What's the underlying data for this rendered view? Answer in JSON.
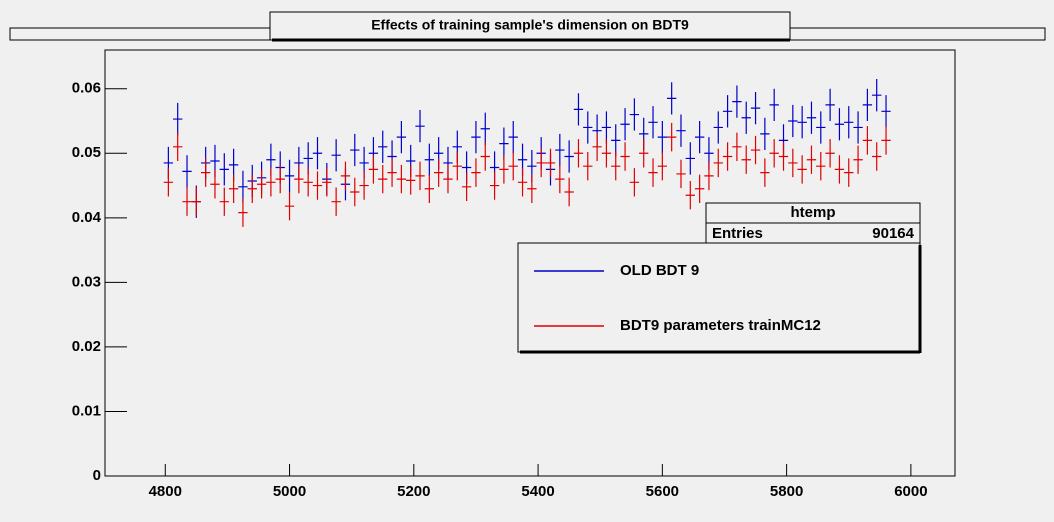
{
  "chart_data": {
    "type": "errorbar",
    "title": "Effects of training sample's dimension on BDT9",
    "x": [
      4805,
      4820,
      4835,
      4850,
      4865,
      4880,
      4895,
      4910,
      4925,
      4940,
      4955,
      4970,
      4985,
      5000,
      5015,
      5030,
      5045,
      5060,
      5075,
      5090,
      5105,
      5120,
      5135,
      5150,
      5165,
      5180,
      5195,
      5210,
      5225,
      5240,
      5255,
      5270,
      5285,
      5300,
      5315,
      5330,
      5345,
      5360,
      5375,
      5390,
      5405,
      5420,
      5435,
      5450,
      5465,
      5480,
      5495,
      5510,
      5525,
      5540,
      5555,
      5570,
      5585,
      5600,
      5615,
      5630,
      5645,
      5660,
      5675,
      5690,
      5705,
      5720,
      5735,
      5750,
      5765,
      5780,
      5795,
      5810,
      5825,
      5840,
      5855,
      5870,
      5885,
      5900,
      5915,
      5930,
      5945,
      5960
    ],
    "x_error": 7.5,
    "series": [
      {
        "name": "OLD BDT 9",
        "color": "#0000cc",
        "y_error": 0.0025,
        "values": [
          0.0485,
          0.0553,
          0.0472,
          0.0425,
          0.0485,
          0.0488,
          0.0475,
          0.0482,
          0.0448,
          0.0457,
          0.0462,
          0.049,
          0.0478,
          0.0465,
          0.0485,
          0.0492,
          0.05,
          0.046,
          0.0497,
          0.0452,
          0.0505,
          0.0485,
          0.05,
          0.051,
          0.0495,
          0.0525,
          0.0488,
          0.0542,
          0.049,
          0.05,
          0.0485,
          0.051,
          0.0478,
          0.0525,
          0.0538,
          0.0478,
          0.0515,
          0.0525,
          0.049,
          0.048,
          0.05,
          0.0475,
          0.0505,
          0.0495,
          0.0568,
          0.054,
          0.0535,
          0.054,
          0.052,
          0.0545,
          0.056,
          0.053,
          0.0548,
          0.0525,
          0.0585,
          0.0535,
          0.0492,
          0.0525,
          0.05,
          0.054,
          0.0565,
          0.058,
          0.0555,
          0.057,
          0.053,
          0.0575,
          0.052,
          0.055,
          0.0548,
          0.0555,
          0.054,
          0.0575,
          0.0545,
          0.0548,
          0.054,
          0.0575,
          0.059,
          0.0565
        ]
      },
      {
        "name": "BDT9 parameters trainMC12",
        "color": "#e00000",
        "y_error": 0.0022,
        "values": [
          0.0455,
          0.051,
          0.0425,
          0.0425,
          0.047,
          0.0452,
          0.0425,
          0.0445,
          0.0408,
          0.0445,
          0.0452,
          0.0455,
          0.046,
          0.0418,
          0.046,
          0.0455,
          0.045,
          0.0455,
          0.0425,
          0.0465,
          0.044,
          0.045,
          0.0475,
          0.046,
          0.047,
          0.046,
          0.0458,
          0.0465,
          0.0445,
          0.047,
          0.046,
          0.048,
          0.0448,
          0.047,
          0.0495,
          0.045,
          0.0475,
          0.048,
          0.0455,
          0.0445,
          0.0485,
          0.0485,
          0.046,
          0.044,
          0.05,
          0.048,
          0.051,
          0.05,
          0.048,
          0.0495,
          0.0455,
          0.05,
          0.047,
          0.048,
          0.0525,
          0.0468,
          0.0435,
          0.0445,
          0.0465,
          0.0485,
          0.0495,
          0.051,
          0.049,
          0.0505,
          0.047,
          0.05,
          0.0495,
          0.0485,
          0.0475,
          0.049,
          0.048,
          0.05,
          0.0475,
          0.047,
          0.049,
          0.052,
          0.0495,
          0.052
        ]
      }
    ],
    "xlim": [
      4703,
      6071
    ],
    "xticks": [
      4800,
      5000,
      5200,
      5400,
      5600,
      5800,
      6000
    ],
    "ylim": [
      0,
      0.066
    ],
    "yticks": [
      0,
      0.01,
      0.02,
      0.03,
      0.04,
      0.05,
      0.06
    ],
    "stats": {
      "title": "htemp",
      "label": "Entries",
      "value": 90164
    }
  }
}
